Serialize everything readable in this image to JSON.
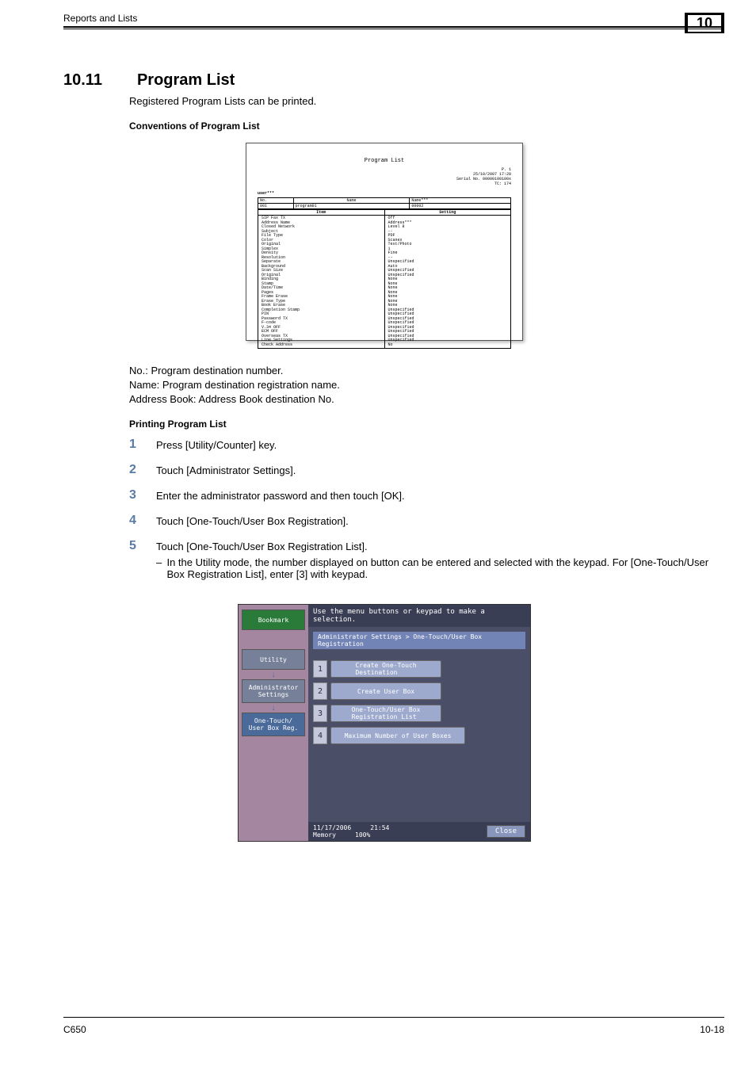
{
  "header": {
    "title": "Reports and Lists",
    "chapter": "10"
  },
  "section": {
    "number": "10.11",
    "title": "Program List"
  },
  "intro": "Registered Program Lists can be printed.",
  "subhead1": "Conventions of Program List",
  "printout": {
    "title": "Program List",
    "meta_page": "P.  1",
    "meta_date": "25/10/2007 17:28",
    "meta_serial": "Serial No.  00000100100x",
    "meta_tc": "TC:         174",
    "user_label": "user***",
    "head": {
      "no_label": "No.",
      "name_label": "Name",
      "name2_label": "Name***",
      "no_val": "001",
      "name_val": "program01",
      "name2_val": "00002"
    },
    "body_head": {
      "item": "Item",
      "setting": "Setting"
    },
    "items": [
      "SIP Fax TX",
      "Address Name",
      "Closed Network",
      "Subject",
      "File Type",
      "Color",
      "Original",
      "Simplex",
      "Density",
      "Resolution",
      "Separate",
      "Background",
      "Scan Size",
      "Original",
      "Binding",
      "Stamp",
      "Date/Time",
      "Pages",
      "Frame Erase",
      "Erase Type",
      "Book Erase",
      "Completion Stamp",
      "PIN",
      "Password TX",
      "F-code",
      "V.34 OFF",
      "ECM OFF",
      "Overseas TX",
      "Line Settings",
      "Check Address"
    ],
    "settings": [
      "Off",
      "Address***",
      "Level 8",
      "--",
      "PDF",
      "Scanex",
      "Text/Photo",
      "1",
      "Fine",
      "--",
      "Unspecified",
      "Auto",
      "Unspecified",
      "Unspecified",
      "None",
      "None",
      "None",
      "None",
      "None",
      "None",
      "None",
      "Unspecified",
      "Unspecified",
      "Unspecified",
      "Unspecified",
      "Unspecified",
      "Unspecified",
      "Unspecified",
      "Unspecified",
      "No"
    ]
  },
  "definitions": {
    "no": "No.: Program destination number.",
    "name": "Name: Program destination registration name.",
    "book": "Address Book: Address Book destination No."
  },
  "subhead2": "Printing Program List",
  "steps": {
    "s1": "Press [Utility/Counter] key.",
    "s2": "Touch [Administrator Settings].",
    "s3": "Enter the administrator password and then touch [OK].",
    "s4": "Touch [One-Touch/User Box Registration].",
    "s5": "Touch [One-Touch/User Box Registration List].",
    "s5_sub": "In the Utility mode, the number displayed on button can be entered and selected with the keypad. For [One-Touch/User Box Registration List], enter [3] with keypad."
  },
  "touchscreen": {
    "topbar": "Use the menu buttons or keypad to make a selection.",
    "breadcrumb": "Administrator Settings > One-Touch/User Box Registration",
    "left": {
      "bookmark": "Bookmark",
      "utility": "Utility",
      "admin": "Administrator\nSettings",
      "onetouch": "One-Touch/\nUser Box Reg."
    },
    "menu": {
      "m1": "Create One-Touch\nDestination",
      "m2": "Create User Box",
      "m3": "One-Touch/User Box\nRegistration List",
      "m4": "Maximum Number of User Boxes"
    },
    "bottom": {
      "date": "11/17/2006",
      "time": "21:54",
      "memory": "Memory",
      "pct": "100%",
      "close": "Close"
    },
    "colors": {
      "panel_bg": "#a586a0",
      "right_bg": "#4a4e66",
      "topbar_bg": "#3a3e54",
      "breadcrumb_bg": "#7284b5",
      "menu_btn_bg": "#9daace",
      "menu_num_bg": "#c3c9db",
      "bookmark_bg": "#2a7a3a",
      "left_btn_bg": "#768099",
      "onetouch_bg": "#4a6a9a",
      "close_bg": "#8896bb",
      "text": "#ffffff"
    }
  },
  "footer": {
    "left": "C650",
    "right": "10-18"
  }
}
